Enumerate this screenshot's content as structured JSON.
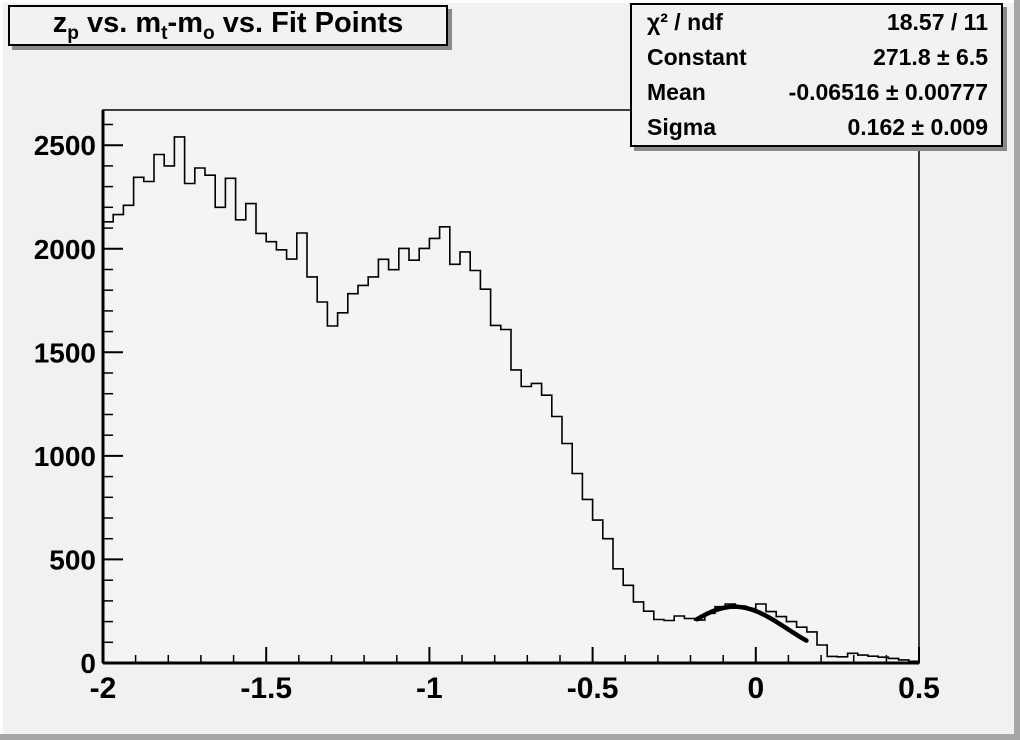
{
  "canvas": {
    "background": "#f1f1f1",
    "bevel_light": "#fdfdfd",
    "bevel_dark": "#a6a6a6",
    "box_fill": "#f2f2f2",
    "box_shadow": "#8a8a8a",
    "line_color": "#000000"
  },
  "title_box": {
    "segments": [
      {
        "text": "z"
      },
      {
        "sub": "p"
      },
      {
        "text": " vs. m"
      },
      {
        "sub": "t"
      },
      {
        "text": "-m"
      },
      {
        "sub": "o"
      },
      {
        "text": " vs. Fit Points"
      }
    ]
  },
  "stats_box": {
    "rows": [
      {
        "label": "χ² / ndf",
        "value": "18.57 / 11"
      },
      {
        "label": "Constant",
        "value": "271.8 ± 6.5"
      },
      {
        "label": "Mean",
        "value": "-0.06516 ± 0.00777"
      },
      {
        "label": "Sigma",
        "value": "0.162 ± 0.009"
      }
    ]
  },
  "chart_data": {
    "type": "line",
    "subtype": "step-histogram",
    "title": "z_p vs. m_t-m_o vs. Fit Points",
    "xlabel": "",
    "ylabel": "",
    "xlim": [
      -2.0,
      0.5
    ],
    "ylim": [
      0,
      2670
    ],
    "grid": false,
    "legend": "none",
    "frame_fill": "#f4f4f4",
    "x_major_ticks": [
      {
        "v": -2.0,
        "label": "-2"
      },
      {
        "v": -1.5,
        "label": "-1.5"
      },
      {
        "v": -1.0,
        "label": "-1"
      },
      {
        "v": -0.5,
        "label": "-0.5"
      },
      {
        "v": 0.0,
        "label": "0"
      },
      {
        "v": 0.5,
        "label": "0.5"
      }
    ],
    "y_major_ticks": [
      {
        "v": 0,
        "label": "0"
      },
      {
        "v": 500,
        "label": "500"
      },
      {
        "v": 1000,
        "label": "1000"
      },
      {
        "v": 1500,
        "label": "1500"
      },
      {
        "v": 2000,
        "label": "2000"
      },
      {
        "v": 2500,
        "label": "2500"
      }
    ],
    "x_minor_step": 0.1,
    "y_minor_step": 100,
    "bins": {
      "x_start": -2.0,
      "bin_width": 0.03125,
      "values": [
        2130,
        2165,
        2210,
        2345,
        2325,
        2455,
        2400,
        2540,
        2315,
        2390,
        2355,
        2200,
        2340,
        2140,
        2218,
        2074,
        2034,
        1995,
        1950,
        2076,
        1864,
        1743,
        1627,
        1691,
        1783,
        1823,
        1864,
        1949,
        1899,
        2002,
        1945,
        2002,
        2050,
        2106,
        1925,
        1985,
        1895,
        1805,
        1630,
        1610,
        1415,
        1335,
        1350,
        1293,
        1190,
        1060,
        915,
        790,
        690,
        600,
        455,
        375,
        295,
        250,
        210,
        205,
        227,
        215,
        207,
        240,
        272,
        285,
        275,
        263,
        285,
        248,
        224,
        200,
        173,
        150,
        87,
        32,
        30,
        47,
        38,
        33,
        28,
        22,
        15,
        8
      ]
    },
    "fit_curve": {
      "shape": "gaussian",
      "constant": 271.8,
      "mean": -0.06516,
      "sigma": 0.162,
      "chi2": 18.57,
      "ndf": 11,
      "draw_range": [
        -0.18,
        0.155
      ],
      "line_width": 4.5,
      "color": "#000000"
    },
    "hist_line_width": 1.6,
    "hist_color": "#000000"
  }
}
